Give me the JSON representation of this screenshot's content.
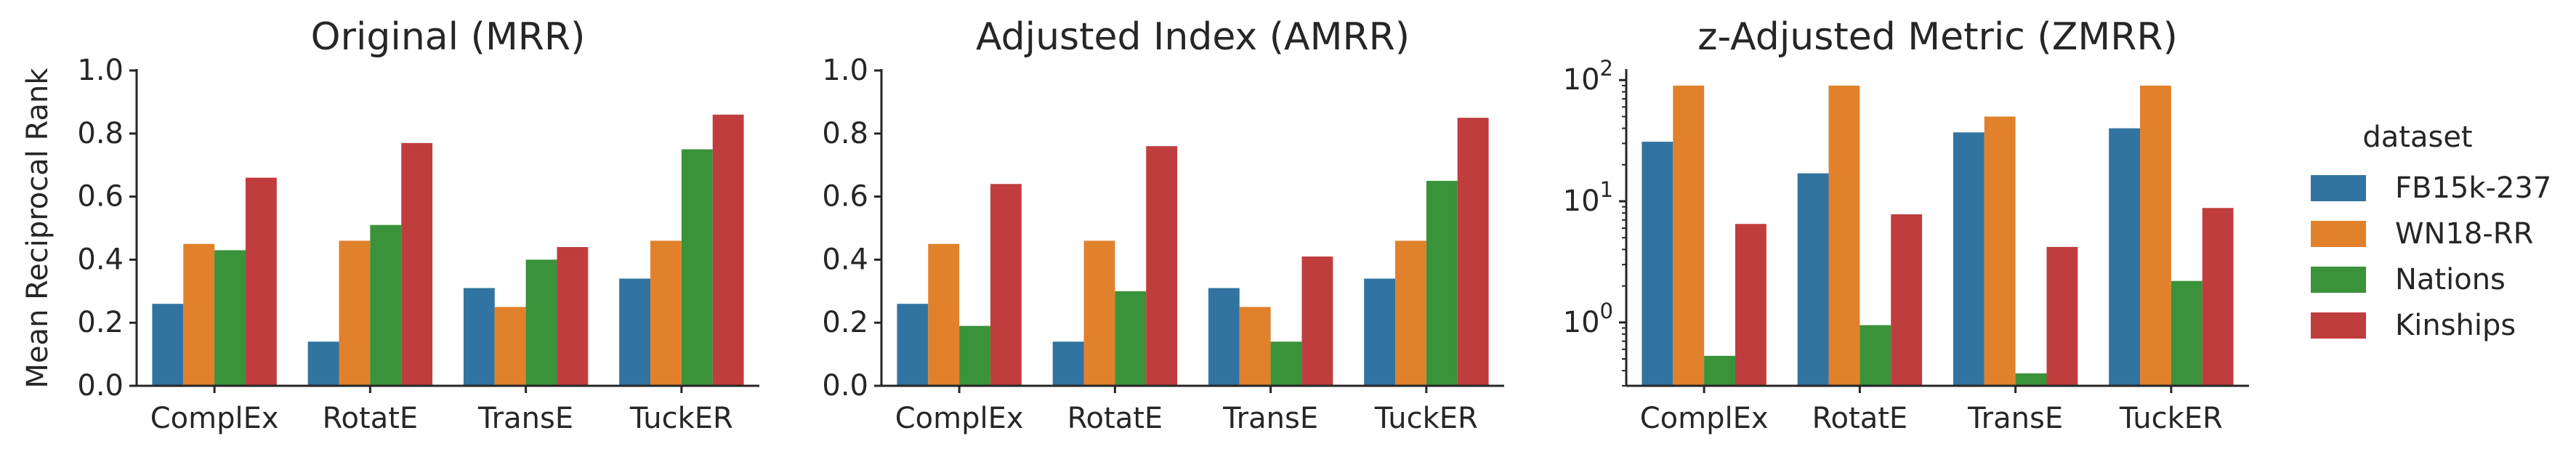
{
  "colors": {
    "FB15k-237": "#3274a1",
    "WN18-RR": "#e1812c",
    "Nations": "#3a923a",
    "Kinships": "#c03d3e"
  },
  "legend": {
    "title": "dataset",
    "placement": "right"
  },
  "chart_data": [
    {
      "type": "bar",
      "title": "Original (MRR)",
      "ylabel": "Mean Reciprocal Rank",
      "xlabel": "",
      "scale": "linear",
      "ylim": [
        0,
        1.0
      ],
      "yticks": [
        0.0,
        0.2,
        0.4,
        0.6,
        0.8,
        1.0
      ],
      "ytick_labels": [
        "0.0",
        "0.2",
        "0.4",
        "0.6",
        "0.8",
        "1.0"
      ],
      "categories": [
        "ComplEx",
        "RotatE",
        "TransE",
        "TuckER"
      ],
      "series": [
        {
          "name": "FB15k-237",
          "values": [
            0.26,
            0.14,
            0.31,
            0.34
          ]
        },
        {
          "name": "WN18-RR",
          "values": [
            0.45,
            0.46,
            0.25,
            0.46
          ]
        },
        {
          "name": "Nations",
          "values": [
            0.43,
            0.51,
            0.4,
            0.75
          ]
        },
        {
          "name": "Kinships",
          "values": [
            0.66,
            0.77,
            0.44,
            0.86
          ]
        }
      ]
    },
    {
      "type": "bar",
      "title": "Adjusted Index (AMRR)",
      "ylabel": "",
      "xlabel": "",
      "scale": "linear",
      "ylim": [
        0,
        1.0
      ],
      "yticks": [
        0.0,
        0.2,
        0.4,
        0.6,
        0.8,
        1.0
      ],
      "ytick_labels": [
        "0.0",
        "0.2",
        "0.4",
        "0.6",
        "0.8",
        "1.0"
      ],
      "categories": [
        "ComplEx",
        "RotatE",
        "TransE",
        "TuckER"
      ],
      "series": [
        {
          "name": "FB15k-237",
          "values": [
            0.26,
            0.14,
            0.31,
            0.34
          ]
        },
        {
          "name": "WN18-RR",
          "values": [
            0.45,
            0.46,
            0.25,
            0.46
          ]
        },
        {
          "name": "Nations",
          "values": [
            0.19,
            0.3,
            0.14,
            0.65
          ]
        },
        {
          "name": "Kinships",
          "values": [
            0.64,
            0.76,
            0.41,
            0.85
          ]
        }
      ]
    },
    {
      "type": "bar",
      "title": "z-Adjusted Metric (ZMRR)",
      "ylabel": "",
      "xlabel": "",
      "scale": "log",
      "ylim": [
        0.3,
        120
      ],
      "yticks": [
        1,
        10,
        100
      ],
      "ytick_labels": [
        "10^0",
        "10^1",
        "10^2"
      ],
      "categories": [
        "ComplEx",
        "RotatE",
        "TransE",
        "TuckER"
      ],
      "series": [
        {
          "name": "FB15k-237",
          "values": [
            31,
            17,
            37,
            40
          ]
        },
        {
          "name": "WN18-RR",
          "values": [
            90,
            90,
            50,
            90
          ]
        },
        {
          "name": "Nations",
          "values": [
            0.53,
            0.95,
            0.38,
            2.2
          ]
        },
        {
          "name": "Kinships",
          "values": [
            6.5,
            7.8,
            4.2,
            8.8
          ]
        }
      ]
    }
  ]
}
